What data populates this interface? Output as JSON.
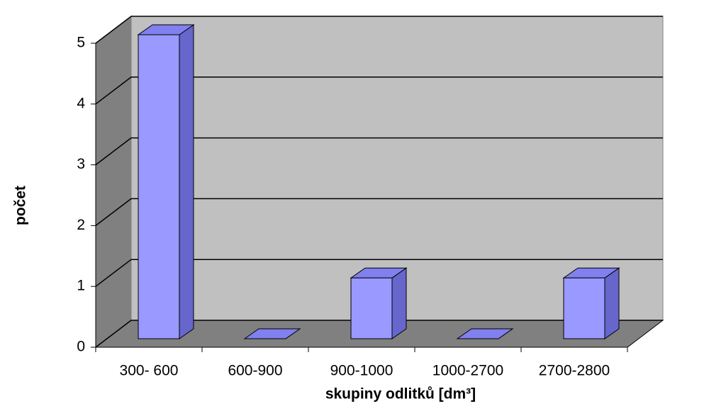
{
  "chart_data": {
    "type": "bar3d",
    "x_label": "skupiny odlitků [dm³]",
    "y_label": "počet",
    "categories": [
      "300- 600",
      "600-900",
      "900-1000",
      "1000-2700",
      "2700-2800"
    ],
    "values": [
      5,
      0,
      1,
      0,
      1
    ],
    "color": "#9999ff",
    "ylim": [
      0,
      5
    ],
    "yticks": [
      0,
      1,
      2,
      3,
      4,
      5
    ],
    "grid": true
  }
}
